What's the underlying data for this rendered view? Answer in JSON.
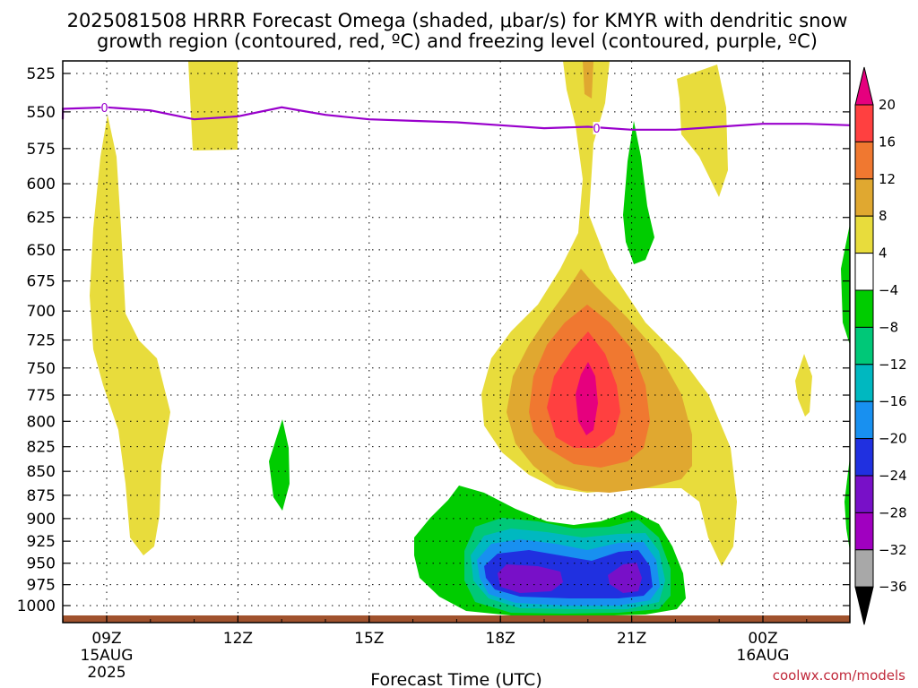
{
  "title_lines": [
    "2025081508 HRRR Forecast Omega (shaded, μbar/s) for KMYR with dendritic snow",
    "growth region (contoured, red, ºC) and freezing level (contoured, purple, ºC)"
  ],
  "credit": "coolwx.com/models",
  "colors": {
    "frame": "#000000",
    "grid": "#000000",
    "freezing_level": "#9900cc",
    "terrain": "#a0522d"
  },
  "chart_data": {
    "type": "heatmap",
    "xlabel": "Forecast Time (UTC)",
    "ylabel": "",
    "grid": true,
    "y_scale": "pressure (hPa), inverted",
    "ylim": [
      1010,
      514
    ],
    "xlim_hours_from_init": [
      -0.8,
      18.5
    ],
    "y_ticks": [
      525,
      550,
      575,
      600,
      625,
      650,
      675,
      700,
      725,
      750,
      775,
      800,
      825,
      850,
      875,
      900,
      925,
      950,
      975,
      1000
    ],
    "x_ticks": [
      {
        "label": "09Z",
        "sub": [
          "15AUG",
          "2025"
        ],
        "hour": 1
      },
      {
        "label": "12Z",
        "sub": [],
        "hour": 4
      },
      {
        "label": "15Z",
        "sub": [],
        "hour": 7
      },
      {
        "label": "18Z",
        "sub": [],
        "hour": 10
      },
      {
        "label": "21Z",
        "sub": [],
        "hour": 13
      },
      {
        "label": "00Z",
        "sub": [
          "16AUG"
        ],
        "hour": 16
      }
    ],
    "colorbar": {
      "labels": [
        "20",
        "16",
        "12",
        "8",
        "4",
        "−4",
        "−8",
        "−12",
        "−16",
        "−20",
        "−24",
        "−28",
        "−32",
        "−36"
      ],
      "bins": [
        {
          "range": ">20",
          "color": "#e6007e"
        },
        {
          "range": "16 to 20",
          "color": "#ff4040"
        },
        {
          "range": "12 to 16",
          "color": "#f07830"
        },
        {
          "range": "8 to 12",
          "color": "#e0a830"
        },
        {
          "range": "4 to 8",
          "color": "#e8dc3c"
        },
        {
          "range": "-4 to 4",
          "color": "#ffffff"
        },
        {
          "range": "-8 to -4",
          "color": "#00cc00"
        },
        {
          "range": "-12 to -8",
          "color": "#00c878"
        },
        {
          "range": "-16 to -12",
          "color": "#00b8c0"
        },
        {
          "range": "-20 to -16",
          "color": "#1890f0"
        },
        {
          "range": "-24 to -20",
          "color": "#2030e0"
        },
        {
          "range": "-28 to -24",
          "color": "#7810c8"
        },
        {
          "range": "-32 to -28",
          "color": "#a000c0"
        },
        {
          "range": "-36 to -32",
          "color": "#a8a8a8"
        },
        {
          "range": "<-36",
          "color": "#000000"
        }
      ]
    },
    "freezing_level": {
      "label": "0",
      "hours": [
        -0.8,
        0,
        1,
        2,
        3,
        4,
        5,
        6,
        7,
        8,
        9,
        10,
        11,
        12,
        13,
        14,
        15,
        16,
        17,
        18,
        18.5
      ],
      "hpa": [
        555,
        548,
        547,
        549,
        555,
        553,
        547,
        552,
        555,
        556,
        557,
        559,
        561,
        560,
        562,
        562,
        560,
        558,
        558,
        559,
        559
      ]
    },
    "omega_regions": [
      {
        "band": "4 to 8",
        "points": [
          [
            -0.7,
            1000
          ]
        ]
      }
    ]
  }
}
